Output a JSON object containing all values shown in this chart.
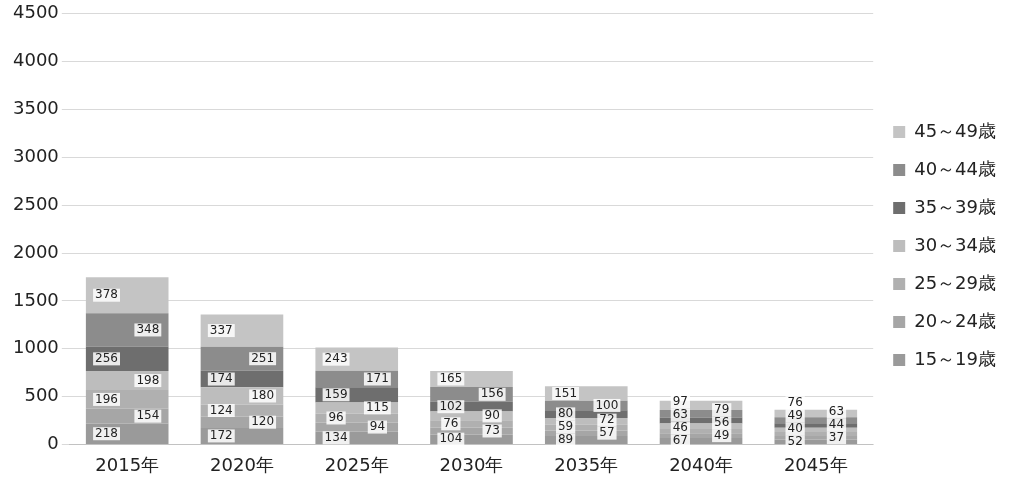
{
  "chart_data": {
    "type": "bar",
    "stacked": true,
    "data_labels": true,
    "legend": "right",
    "grid": "y",
    "categories": [
      "2015年",
      "2020年",
      "2025年",
      "2030年",
      "2035年",
      "2040年",
      "2045年"
    ],
    "ylim": [
      0,
      4500
    ],
    "yticks": [
      0,
      500,
      1000,
      1500,
      2000,
      2500,
      3000,
      3500,
      4000,
      4500
    ],
    "series": [
      {
        "name": "15～19歳",
        "color": "#9a9a9a",
        "values": [
          218,
          172,
          134,
          104,
          89,
          67,
          52
        ]
      },
      {
        "name": "20～24歳",
        "color": "#a6a6a6",
        "values": [
          154,
          120,
          94,
          73,
          57,
          49,
          37
        ]
      },
      {
        "name": "25～29歳",
        "color": "#b0b0b0",
        "values": [
          196,
          124,
          96,
          76,
          59,
          46,
          40
        ]
      },
      {
        "name": "30～34歳",
        "color": "#bdbdbd",
        "values": [
          198,
          180,
          115,
          90,
          72,
          56,
          44
        ]
      },
      {
        "name": "35～39歳",
        "color": "#6e6e6e",
        "values": [
          256,
          174,
          159,
          102,
          80,
          63,
          49
        ]
      },
      {
        "name": "40～44歳",
        "color": "#8c8c8c",
        "values": [
          348,
          251,
          171,
          156,
          100,
          79,
          63
        ]
      },
      {
        "name": "45～49歳",
        "color": "#c4c4c4",
        "values": [
          378,
          337,
          243,
          165,
          151,
          97,
          76
        ]
      }
    ]
  }
}
